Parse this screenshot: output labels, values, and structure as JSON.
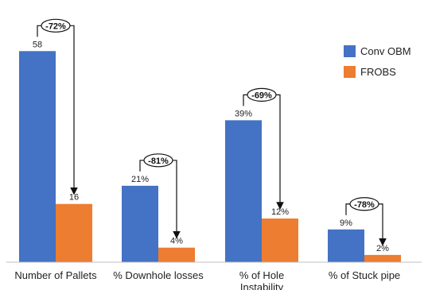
{
  "chart_data": {
    "type": "bar",
    "categories": [
      "Number of Pallets",
      "% Downhole losses",
      "% of Hole Instability",
      "% of Stuck pipe"
    ],
    "category_lines": [
      [
        "Number of Pallets"
      ],
      [
        "% Downhole losses"
      ],
      [
        "% of Hole",
        "Instability"
      ],
      [
        "% of Stuck pipe"
      ]
    ],
    "series": [
      {
        "name": "Conv OBM",
        "values": [
          58,
          21,
          39,
          9
        ],
        "labels": [
          "58",
          "21%",
          "39%",
          "9%"
        ],
        "color": "#4472C4"
      },
      {
        "name": "FROBS",
        "values": [
          16,
          4,
          12,
          2
        ],
        "labels": [
          "16",
          "4%",
          "12%",
          "2%"
        ],
        "color": "#ED7D31"
      }
    ],
    "annotations": [
      "-72%",
      "-81%",
      "-69%",
      "-78%"
    ],
    "ylim": [
      0,
      62
    ],
    "grid": false,
    "legend_position": "top-right",
    "title": "",
    "xlabel": "",
    "ylabel": ""
  }
}
